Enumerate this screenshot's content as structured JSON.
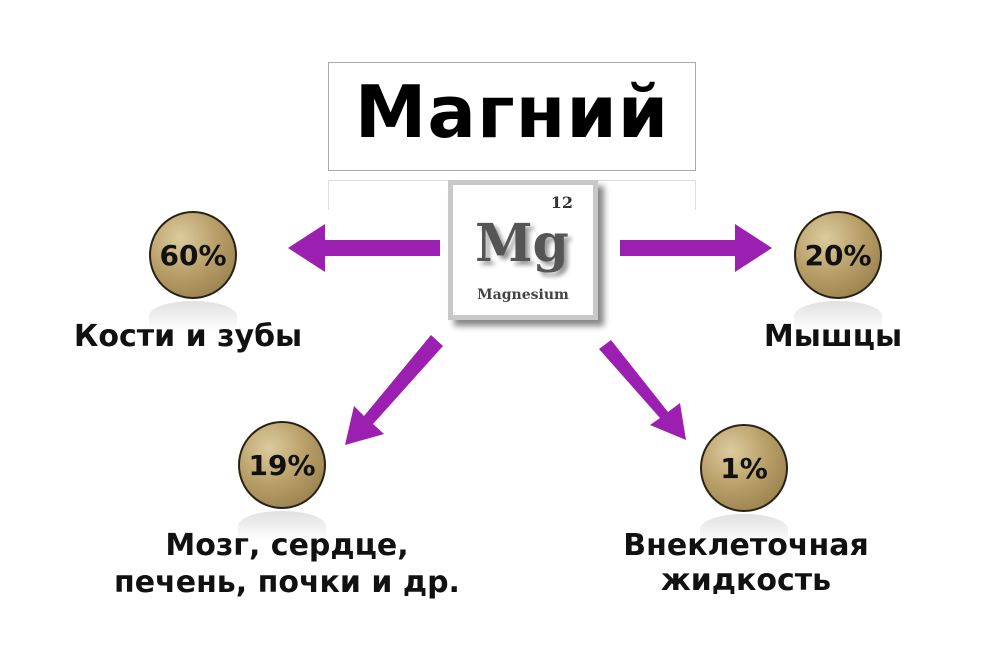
{
  "title": "Магний",
  "element": {
    "symbol": "Mg",
    "atomic_number": "12",
    "name": "Magnesium"
  },
  "colors": {
    "arrow": "#9b1fb0",
    "coin": "#b89f68"
  },
  "groups": [
    {
      "percent": "60%",
      "label": [
        "Кости и зубы"
      ]
    },
    {
      "percent": "20%",
      "label": [
        "Мышцы"
      ]
    },
    {
      "percent": "19%",
      "label": [
        "Мозг, сердце,",
        "печень, почки и др."
      ]
    },
    {
      "percent": "1%",
      "label": [
        "Внеклеточная",
        "жидкость"
      ]
    }
  ]
}
